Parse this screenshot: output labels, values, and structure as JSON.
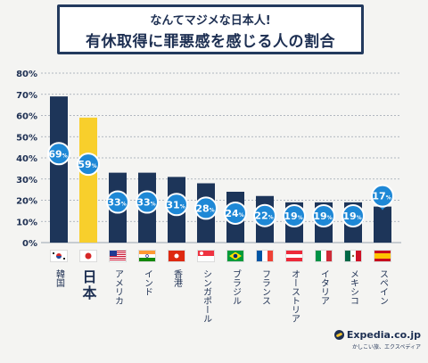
{
  "header": {
    "line1": "なんてマジメな日本人!",
    "line2": "有休取得に罪悪感を感じる人の割合"
  },
  "brand": {
    "name": "Expedia.co.jp",
    "tagline": "かしこい旅、エクスペディア"
  },
  "colors": {
    "bar": "#1d3559",
    "highlight_bar": "#f8cf2c",
    "badge": "#1e88d6",
    "text": "#1d2f52"
  },
  "chart_data": {
    "type": "bar",
    "y_ticks": [
      "0%",
      "10%",
      "20%",
      "30%",
      "40%",
      "50%",
      "60%",
      "70%",
      "80%"
    ],
    "ylim": [
      0,
      80
    ],
    "grid": true,
    "categories": [
      "韓国",
      "日本",
      "アメリカ",
      "インド",
      "香港",
      "シンガポール",
      "ブラジル",
      "フランス",
      "オーストリア",
      "イタリア",
      "メキシコ",
      "スペイン"
    ],
    "values": [
      69,
      59,
      33,
      33,
      31,
      28,
      24,
      22,
      19,
      19,
      19,
      17
    ],
    "value_labels": [
      "69",
      "59",
      "33",
      "33",
      "31",
      "28",
      "24",
      "22",
      "19",
      "19",
      "19",
      "17"
    ],
    "value_unit": "%",
    "highlight_index": 1,
    "flags": [
      "south-korea-flag",
      "japan-flag",
      "usa-flag",
      "india-flag",
      "hong-kong-flag",
      "singapore-flag",
      "brazil-flag",
      "france-flag",
      "austria-flag",
      "italy-flag",
      "mexico-flag",
      "spain-flag"
    ]
  }
}
